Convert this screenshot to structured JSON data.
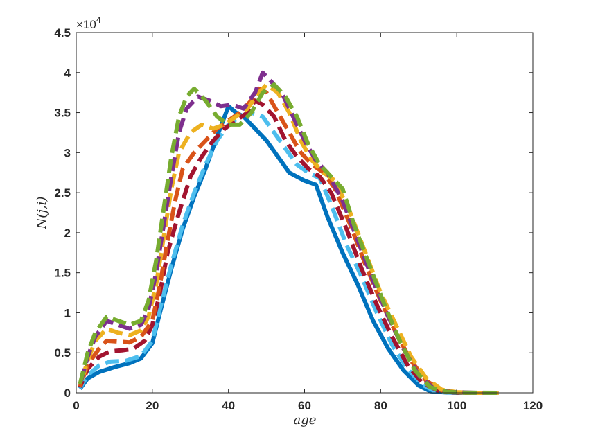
{
  "chart_data": {
    "type": "line",
    "title": "",
    "xlabel": "age",
    "ylabel": "N(j,i)",
    "xlim": [
      0,
      120
    ],
    "ylim": [
      0,
      45000
    ],
    "y_exponent_label": "×10",
    "y_exponent_power": "4",
    "xticks": [
      0,
      20,
      40,
      60,
      80,
      100,
      120
    ],
    "xtick_labels": [
      "0",
      "20",
      "40",
      "60",
      "80",
      "100",
      "120"
    ],
    "yticks": [
      0,
      5000,
      10000,
      15000,
      20000,
      25000,
      30000,
      35000,
      40000,
      45000
    ],
    "ytick_labels": [
      "0",
      "0.5",
      "1",
      "1.5",
      "2",
      "2.5",
      "3",
      "3.5",
      "4",
      "4.5"
    ],
    "grid": false,
    "legend": "none",
    "series": [
      {
        "color": "#0072BD",
        "dash": "solid",
        "width": 6,
        "points": [
          [
            1,
            500
          ],
          [
            3,
            1800
          ],
          [
            6,
            2600
          ],
          [
            10,
            3200
          ],
          [
            14,
            3700
          ],
          [
            17,
            4300
          ],
          [
            20,
            6200
          ],
          [
            22,
            10000
          ],
          [
            25,
            15500
          ],
          [
            28,
            20500
          ],
          [
            31,
            24500
          ],
          [
            34,
            28000
          ],
          [
            37,
            32000
          ],
          [
            40,
            35800
          ],
          [
            42,
            35000
          ],
          [
            44,
            34500
          ],
          [
            47,
            33000
          ],
          [
            50,
            31500
          ],
          [
            53,
            29500
          ],
          [
            56,
            27500
          ],
          [
            60,
            26500
          ],
          [
            63,
            26000
          ],
          [
            66,
            22000
          ],
          [
            70,
            17500
          ],
          [
            74,
            13500
          ],
          [
            78,
            9000
          ],
          [
            82,
            5500
          ],
          [
            86,
            2800
          ],
          [
            90,
            900
          ],
          [
            93,
            200
          ],
          [
            97,
            50
          ],
          [
            100,
            0
          ],
          [
            111,
            0
          ]
        ]
      },
      {
        "color": "#4DBEEE",
        "dash": "dashed",
        "width": 6,
        "points": [
          [
            1,
            600
          ],
          [
            3,
            2200
          ],
          [
            6,
            3400
          ],
          [
            9,
            3900
          ],
          [
            13,
            4000
          ],
          [
            17,
            4600
          ],
          [
            20,
            6500
          ],
          [
            22,
            10500
          ],
          [
            25,
            16000
          ],
          [
            28,
            21000
          ],
          [
            31,
            25000
          ],
          [
            34,
            28500
          ],
          [
            37,
            31500
          ],
          [
            40,
            33500
          ],
          [
            43,
            34500
          ],
          [
            46,
            35000
          ],
          [
            49,
            34500
          ],
          [
            52,
            32500
          ],
          [
            55,
            30500
          ],
          [
            58,
            28500
          ],
          [
            61,
            27500
          ],
          [
            64,
            26800
          ],
          [
            67,
            23500
          ],
          [
            71,
            18500
          ],
          [
            75,
            14500
          ],
          [
            79,
            10000
          ],
          [
            83,
            6000
          ],
          [
            87,
            3000
          ],
          [
            91,
            1000
          ],
          [
            94,
            250
          ],
          [
            98,
            50
          ],
          [
            101,
            0
          ],
          [
            111,
            0
          ]
        ]
      },
      {
        "color": "#A2142F",
        "dash": "dashed",
        "width": 6,
        "points": [
          [
            1,
            700
          ],
          [
            3,
            3000
          ],
          [
            6,
            4500
          ],
          [
            9,
            5200
          ],
          [
            12,
            5300
          ],
          [
            15,
            5500
          ],
          [
            18,
            6500
          ],
          [
            20,
            8500
          ],
          [
            22,
            12500
          ],
          [
            24,
            17500
          ],
          [
            27,
            22500
          ],
          [
            30,
            27000
          ],
          [
            33,
            29500
          ],
          [
            36,
            31500
          ],
          [
            39,
            33000
          ],
          [
            42,
            34000
          ],
          [
            45,
            35000
          ],
          [
            47,
            36500
          ],
          [
            49,
            36000
          ],
          [
            52,
            34500
          ],
          [
            55,
            31500
          ],
          [
            58,
            29500
          ],
          [
            61,
            28000
          ],
          [
            64,
            27000
          ],
          [
            67,
            25000
          ],
          [
            71,
            20500
          ],
          [
            75,
            15500
          ],
          [
            79,
            11000
          ],
          [
            83,
            7000
          ],
          [
            87,
            3500
          ],
          [
            91,
            1200
          ],
          [
            95,
            300
          ],
          [
            99,
            50
          ],
          [
            102,
            0
          ],
          [
            111,
            0
          ]
        ]
      },
      {
        "color": "#D95319",
        "dash": "dashed",
        "width": 6,
        "points": [
          [
            1,
            800
          ],
          [
            3,
            3500
          ],
          [
            6,
            5500
          ],
          [
            8,
            6500
          ],
          [
            11,
            6400
          ],
          [
            14,
            6300
          ],
          [
            17,
            7000
          ],
          [
            20,
            9000
          ],
          [
            22,
            13500
          ],
          [
            24,
            19000
          ],
          [
            26,
            24000
          ],
          [
            28,
            28000
          ],
          [
            31,
            30000
          ],
          [
            34,
            31500
          ],
          [
            37,
            33000
          ],
          [
            40,
            34000
          ],
          [
            43,
            35000
          ],
          [
            46,
            36500
          ],
          [
            48,
            38000
          ],
          [
            50,
            37500
          ],
          [
            53,
            35000
          ],
          [
            56,
            32500
          ],
          [
            59,
            30000
          ],
          [
            62,
            28500
          ],
          [
            65,
            27500
          ],
          [
            68,
            25500
          ],
          [
            72,
            21000
          ],
          [
            76,
            16000
          ],
          [
            80,
            11500
          ],
          [
            84,
            7500
          ],
          [
            88,
            4000
          ],
          [
            92,
            1500
          ],
          [
            96,
            300
          ],
          [
            100,
            50
          ],
          [
            103,
            0
          ],
          [
            111,
            0
          ]
        ]
      },
      {
        "color": "#EDB120",
        "dash": "dashed",
        "width": 6,
        "points": [
          [
            1,
            900
          ],
          [
            3,
            4000
          ],
          [
            5,
            6500
          ],
          [
            8,
            8000
          ],
          [
            11,
            7500
          ],
          [
            14,
            7200
          ],
          [
            17,
            7800
          ],
          [
            19,
            9500
          ],
          [
            21,
            13500
          ],
          [
            23,
            19500
          ],
          [
            25,
            25500
          ],
          [
            27,
            30000
          ],
          [
            30,
            32500
          ],
          [
            33,
            33500
          ],
          [
            36,
            33000
          ],
          [
            39,
            33500
          ],
          [
            42,
            34500
          ],
          [
            45,
            35500
          ],
          [
            48,
            37500
          ],
          [
            50,
            38500
          ],
          [
            53,
            37500
          ],
          [
            56,
            35000
          ],
          [
            59,
            31500
          ],
          [
            62,
            29000
          ],
          [
            65,
            27500
          ],
          [
            68,
            26500
          ],
          [
            72,
            22500
          ],
          [
            76,
            17500
          ],
          [
            80,
            12500
          ],
          [
            84,
            8500
          ],
          [
            88,
            4500
          ],
          [
            92,
            1800
          ],
          [
            96,
            400
          ],
          [
            100,
            80
          ],
          [
            104,
            0
          ],
          [
            111,
            0
          ]
        ]
      },
      {
        "color": "#7E2F8E",
        "dash": "dashed",
        "width": 6,
        "points": [
          [
            1,
            1000
          ],
          [
            3,
            4500
          ],
          [
            5,
            7000
          ],
          [
            8,
            9000
          ],
          [
            11,
            8500
          ],
          [
            14,
            8000
          ],
          [
            17,
            8500
          ],
          [
            19,
            10500
          ],
          [
            21,
            15000
          ],
          [
            23,
            21000
          ],
          [
            25,
            27000
          ],
          [
            27,
            32500
          ],
          [
            29,
            35500
          ],
          [
            32,
            37000
          ],
          [
            35,
            36500
          ],
          [
            38,
            35800
          ],
          [
            41,
            36000
          ],
          [
            44,
            35500
          ],
          [
            47,
            37500
          ],
          [
            49,
            40000
          ],
          [
            51,
            39000
          ],
          [
            54,
            37500
          ],
          [
            57,
            34500
          ],
          [
            60,
            31500
          ],
          [
            63,
            29000
          ],
          [
            66,
            27500
          ],
          [
            70,
            24000
          ],
          [
            74,
            19000
          ],
          [
            78,
            14000
          ],
          [
            82,
            9500
          ],
          [
            86,
            5500
          ],
          [
            90,
            2200
          ],
          [
            94,
            500
          ],
          [
            98,
            100
          ],
          [
            105,
            0
          ],
          [
            111,
            0
          ]
        ]
      },
      {
        "color": "#77AC30",
        "dash": "dashed",
        "width": 6,
        "points": [
          [
            1,
            1100
          ],
          [
            3,
            5000
          ],
          [
            5,
            7500
          ],
          [
            8,
            9500
          ],
          [
            11,
            9000
          ],
          [
            14,
            8500
          ],
          [
            17,
            9000
          ],
          [
            19,
            11500
          ],
          [
            21,
            16500
          ],
          [
            23,
            23000
          ],
          [
            25,
            29500
          ],
          [
            27,
            34500
          ],
          [
            29,
            37000
          ],
          [
            31,
            38000
          ],
          [
            34,
            36500
          ],
          [
            37,
            34500
          ],
          [
            40,
            33500
          ],
          [
            43,
            33500
          ],
          [
            46,
            35000
          ],
          [
            49,
            37500
          ],
          [
            52,
            38500
          ],
          [
            55,
            37000
          ],
          [
            58,
            34500
          ],
          [
            61,
            31000
          ],
          [
            64,
            28500
          ],
          [
            67,
            27000
          ],
          [
            70,
            25500
          ],
          [
            73,
            21000
          ],
          [
            77,
            16000
          ],
          [
            81,
            11000
          ],
          [
            85,
            6500
          ],
          [
            89,
            2800
          ],
          [
            93,
            700
          ],
          [
            97,
            150
          ],
          [
            101,
            20
          ],
          [
            111,
            0
          ]
        ]
      }
    ]
  }
}
